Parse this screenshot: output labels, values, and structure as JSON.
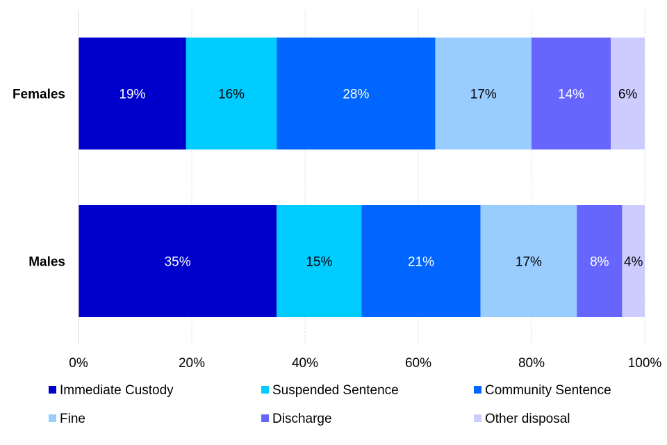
{
  "chart_data": {
    "type": "bar",
    "orientation": "horizontal",
    "stacked": true,
    "categories": [
      "Females",
      "Males"
    ],
    "series": [
      {
        "name": "Immediate Custody",
        "color": "#0000CC",
        "label_color": "#ffffff",
        "values": [
          19,
          35
        ],
        "labels": [
          "19%",
          "35%"
        ]
      },
      {
        "name": "Suspended Sentence",
        "color": "#00CCFF",
        "label_color": "#000000",
        "values": [
          16,
          15
        ],
        "labels": [
          "16%",
          "15%"
        ]
      },
      {
        "name": "Community Sentence",
        "color": "#0066FF",
        "label_color": "#ffffff",
        "values": [
          28,
          21
        ],
        "labels": [
          "28%",
          "21%"
        ]
      },
      {
        "name": "Fine",
        "color": "#99CCFF",
        "label_color": "#000000",
        "values": [
          17,
          17
        ],
        "labels": [
          "17%",
          "17%"
        ]
      },
      {
        "name": "Discharge",
        "color": "#6666FF",
        "label_color": "#ffffff",
        "values": [
          14,
          8
        ],
        "labels": [
          "14%",
          "8%"
        ]
      },
      {
        "name": "Other disposal",
        "color": "#CCCCFF",
        "label_color": "#000000",
        "values": [
          6,
          4
        ],
        "labels": [
          "6%",
          "4%"
        ]
      }
    ],
    "xlim": [
      0,
      100
    ],
    "x_ticks": [
      "0%",
      "20%",
      "40%",
      "60%",
      "80%",
      "100%"
    ],
    "grid": true,
    "legend_position": "bottom"
  }
}
